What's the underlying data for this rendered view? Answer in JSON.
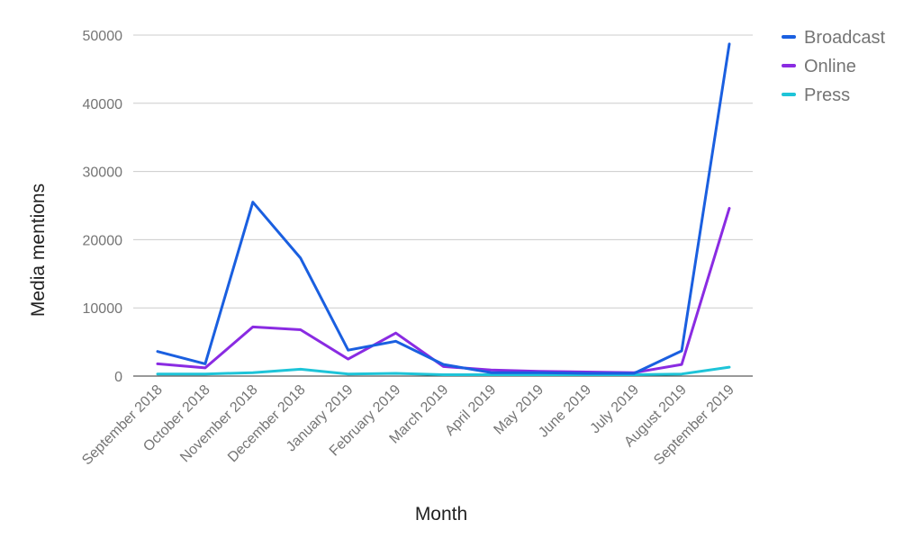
{
  "chart_data": {
    "type": "line",
    "title": "",
    "xlabel": "Month",
    "ylabel": "Media mentions",
    "categories": [
      "September 2018",
      "October 2018",
      "November 2018",
      "December 2018",
      "January 2019",
      "February 2019",
      "March 2019",
      "April 2019",
      "May 2019",
      "June 2019",
      "July 2019",
      "August 2019",
      "September 2019"
    ],
    "ylim": [
      0,
      50000
    ],
    "yticks": [
      0,
      10000,
      20000,
      30000,
      40000,
      50000
    ],
    "grid": true,
    "legend_position": "right",
    "series": [
      {
        "name": "Broadcast",
        "color": "#1a5fe0",
        "values": [
          3600,
          1800,
          25500,
          17300,
          3800,
          5100,
          1700,
          500,
          500,
          400,
          400,
          3700,
          48700
        ]
      },
      {
        "name": "Online",
        "color": "#8a2be2",
        "values": [
          1800,
          1200,
          7200,
          6800,
          2500,
          6300,
          1400,
          900,
          700,
          600,
          500,
          1700,
          24600
        ]
      },
      {
        "name": "Press",
        "color": "#1ec4d8",
        "values": [
          300,
          300,
          500,
          1000,
          300,
          400,
          200,
          200,
          200,
          200,
          200,
          300,
          1300
        ]
      }
    ]
  }
}
